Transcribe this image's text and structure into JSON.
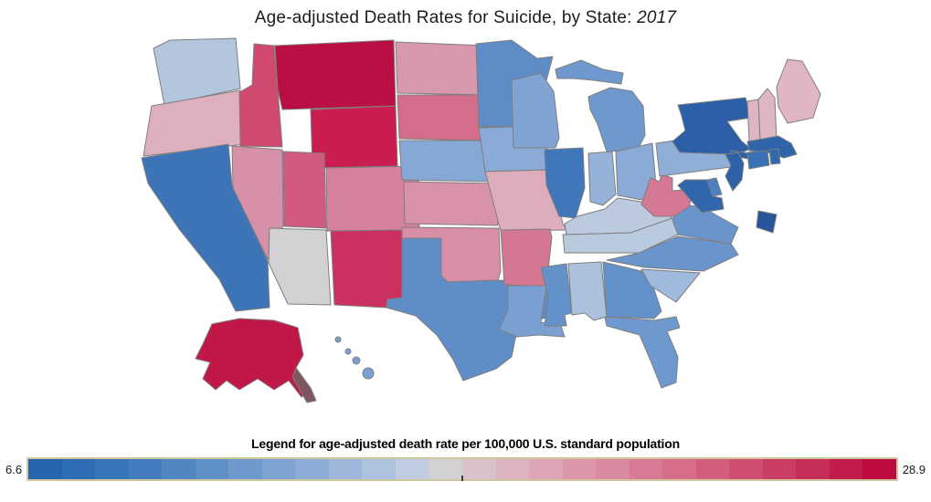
{
  "title": {
    "prefix": "Age-adjusted Death Rates for Suicide, by State: ",
    "year": "2017"
  },
  "legend": {
    "title": "Legend for age-adjusted death rate per 100,000 U.S. standard population",
    "min_label": "6.6",
    "max_label": "28.9",
    "border_color": "#cfc69e",
    "midpoint_tick_fraction": 0.5,
    "colors": [
      "#2565ad",
      "#2e6db3",
      "#3875b8",
      "#437dbd",
      "#5086c2",
      "#5e8fc7",
      "#6d99cd",
      "#7da3d2",
      "#8dadd6",
      "#9eb7da",
      "#aec1de",
      "#bfcce1",
      "#d2d2d4",
      "#d9c2cb",
      "#deb3c1",
      "#dda5b6",
      "#dc97aa",
      "#da899f",
      "#d87a94",
      "#d56c88",
      "#d25d7d",
      "#ce4e71",
      "#ca3e65",
      "#c62e58",
      "#c21c4b",
      "#bd0a3f"
    ]
  },
  "chart_data": {
    "type": "choropleth",
    "title": "Age-adjusted Death Rates for Suicide, by State: 2017",
    "unit": "age-adjusted death rate per 100,000 U.S. standard population",
    "color_scale": {
      "min": 6.6,
      "max": 28.9,
      "low_color": "#2565ad",
      "mid_color": "#d2d2d4",
      "high_color": "#bd0a3f"
    },
    "values_note": "state values estimated from map colors against the 6.6-28.9 legend scale",
    "alaska_panhandle_color": "#7d5660",
    "states": [
      {
        "id": "AL",
        "name": "Alabama",
        "value": 16.4,
        "color": "#abc1de"
      },
      {
        "id": "AK",
        "name": "Alaska",
        "value": 27.0,
        "color": "#c11747"
      },
      {
        "id": "AZ",
        "name": "Arizona",
        "value": 17.5,
        "color": "#d2d2d4"
      },
      {
        "id": "AR",
        "name": "Arkansas",
        "value": 20.2,
        "color": "#d47792"
      },
      {
        "id": "CA",
        "name": "California",
        "value": 10.5,
        "color": "#3d74b8"
      },
      {
        "id": "CO",
        "name": "Colorado",
        "value": 20.0,
        "color": "#d5809c"
      },
      {
        "id": "CT",
        "name": "Connecticut",
        "value": 10.2,
        "color": "#3a70b4"
      },
      {
        "id": "DE",
        "name": "Delaware",
        "value": 11.3,
        "color": "#4c80c0"
      },
      {
        "id": "DC",
        "name": "District of Columbia",
        "value": 6.6,
        "color": "#27549b"
      },
      {
        "id": "FL",
        "name": "Florida",
        "value": 14.1,
        "color": "#6e99ce"
      },
      {
        "id": "GA",
        "name": "Georgia",
        "value": 13.5,
        "color": "#6391ca"
      },
      {
        "id": "HI",
        "name": "Hawaii",
        "value": 14.5,
        "color": "#79a0d1"
      },
      {
        "id": "ID",
        "name": "Idaho",
        "value": 23.2,
        "color": "#cf4a6e"
      },
      {
        "id": "IL",
        "name": "Illinois",
        "value": 10.9,
        "color": "#4077bb"
      },
      {
        "id": "IN",
        "name": "Indiana",
        "value": 15.4,
        "color": "#95b3d9"
      },
      {
        "id": "IA",
        "name": "Iowa",
        "value": 15.2,
        "color": "#8aabd6"
      },
      {
        "id": "KS",
        "name": "Kansas",
        "value": 19.7,
        "color": "#d892a9"
      },
      {
        "id": "KY",
        "name": "Kentucky",
        "value": 17.2,
        "color": "#bccadf"
      },
      {
        "id": "LA",
        "name": "Louisiana",
        "value": 14.6,
        "color": "#79a0d1"
      },
      {
        "id": "ME",
        "name": "Maine",
        "value": 18.4,
        "color": "#e0b6c4"
      },
      {
        "id": "MD",
        "name": "Maryland",
        "value": 9.8,
        "color": "#3066ac"
      },
      {
        "id": "MA",
        "name": "Massachusetts",
        "value": 9.5,
        "color": "#3065ab"
      },
      {
        "id": "MI",
        "name": "Michigan",
        "value": 14.2,
        "color": "#6e99ce"
      },
      {
        "id": "MN",
        "name": "Minnesota",
        "value": 12.9,
        "color": "#5d8cc7"
      },
      {
        "id": "MS",
        "name": "Mississippi",
        "value": 13.3,
        "color": "#6391ca"
      },
      {
        "id": "MO",
        "name": "Missouri",
        "value": 18.9,
        "color": "#ddadbe"
      },
      {
        "id": "MT",
        "name": "Montana",
        "value": 28.9,
        "color": "#b90f43"
      },
      {
        "id": "NE",
        "name": "Nebraska",
        "value": 15.0,
        "color": "#85a8d5"
      },
      {
        "id": "NV",
        "name": "Nevada",
        "value": 21.4,
        "color": "#d690a9"
      },
      {
        "id": "NH",
        "name": "New Hampshire",
        "value": 18.1,
        "color": "#dfb7c4"
      },
      {
        "id": "NJ",
        "name": "New Jersey",
        "value": 8.3,
        "color": "#2d61a8"
      },
      {
        "id": "NM",
        "name": "New Mexico",
        "value": 23.3,
        "color": "#cb3061"
      },
      {
        "id": "NY",
        "name": "New York",
        "value": 8.1,
        "color": "#2c5fa7"
      },
      {
        "id": "NC",
        "name": "North Carolina",
        "value": 13.8,
        "color": "#6995cc"
      },
      {
        "id": "ND",
        "name": "North Dakota",
        "value": 19.1,
        "color": "#d898ad"
      },
      {
        "id": "OH",
        "name": "Ohio",
        "value": 15.1,
        "color": "#8aabd6"
      },
      {
        "id": "OK",
        "name": "Oklahoma",
        "value": 19.9,
        "color": "#d78ea6"
      },
      {
        "id": "OR",
        "name": "Oregon",
        "value": 18.7,
        "color": "#ddafbf"
      },
      {
        "id": "PA",
        "name": "Pennsylvania",
        "value": 15.3,
        "color": "#8fafd7"
      },
      {
        "id": "RI",
        "name": "Rhode Island",
        "value": 10.0,
        "color": "#3268ae"
      },
      {
        "id": "SC",
        "name": "South Carolina",
        "value": 16.1,
        "color": "#a0badd"
      },
      {
        "id": "SD",
        "name": "South Dakota",
        "value": 20.5,
        "color": "#d36d8a"
      },
      {
        "id": "TN",
        "name": "Tennessee",
        "value": 16.9,
        "color": "#b9c9de"
      },
      {
        "id": "TX",
        "name": "Texas",
        "value": 13.0,
        "color": "#5e8dc8"
      },
      {
        "id": "UT",
        "name": "Utah",
        "value": 22.7,
        "color": "#d25a7e"
      },
      {
        "id": "VT",
        "name": "Vermont",
        "value": 18.3,
        "color": "#dfb5c3"
      },
      {
        "id": "VA",
        "name": "Virginia",
        "value": 13.9,
        "color": "#6995cc"
      },
      {
        "id": "WA",
        "name": "Washington",
        "value": 16.5,
        "color": "#b3c6de"
      },
      {
        "id": "WV",
        "name": "West Virginia",
        "value": 20.0,
        "color": "#d47894"
      },
      {
        "id": "WI",
        "name": "Wisconsin",
        "value": 14.9,
        "color": "#7fa4d3"
      },
      {
        "id": "WY",
        "name": "Wyoming",
        "value": 26.9,
        "color": "#ca1e50"
      }
    ]
  }
}
